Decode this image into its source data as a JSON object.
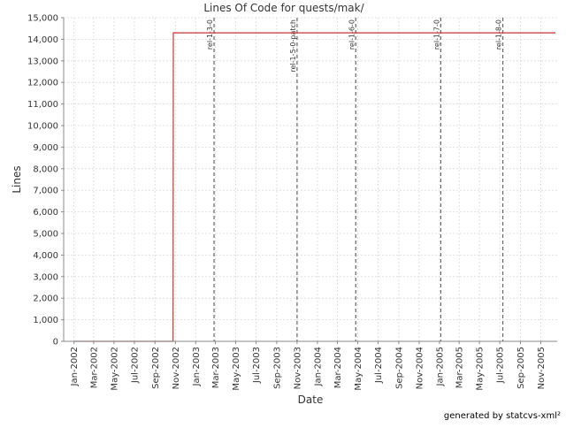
{
  "chart_data": {
    "type": "line",
    "title": "Lines Of Code for quests/mak/",
    "xlabel": "Date",
    "ylabel": "Lines",
    "ylim": [
      0,
      15000
    ],
    "xlim": [
      "2001-12-01",
      "2005-12-20"
    ],
    "grid": true,
    "yticks": [
      0,
      1000,
      2000,
      3000,
      4000,
      5000,
      6000,
      7000,
      8000,
      9000,
      10000,
      11000,
      12000,
      13000,
      14000,
      15000
    ],
    "yticklabels": [
      "0",
      "1,000",
      "2,000",
      "3,000",
      "4,000",
      "5,000",
      "6,000",
      "7,000",
      "8,000",
      "9,000",
      "10,000",
      "11,000",
      "12,000",
      "13,000",
      "14,000",
      "15,000"
    ],
    "xticks": [
      {
        "date": "2002-01-01",
        "label": "Jan-2002"
      },
      {
        "date": "2002-03-01",
        "label": "Mar-2002"
      },
      {
        "date": "2002-05-01",
        "label": "May-2002"
      },
      {
        "date": "2002-07-01",
        "label": "Jul-2002"
      },
      {
        "date": "2002-09-01",
        "label": "Sep-2002"
      },
      {
        "date": "2002-11-01",
        "label": "Nov-2002"
      },
      {
        "date": "2003-01-01",
        "label": "Jan-2003"
      },
      {
        "date": "2003-03-01",
        "label": "Mar-2003"
      },
      {
        "date": "2003-05-01",
        "label": "May-2003"
      },
      {
        "date": "2003-07-01",
        "label": "Jul-2003"
      },
      {
        "date": "2003-09-01",
        "label": "Sep-2003"
      },
      {
        "date": "2003-11-01",
        "label": "Nov-2003"
      },
      {
        "date": "2004-01-01",
        "label": "Jan-2004"
      },
      {
        "date": "2004-03-01",
        "label": "Mar-2004"
      },
      {
        "date": "2004-05-01",
        "label": "May-2004"
      },
      {
        "date": "2004-07-01",
        "label": "Jul-2004"
      },
      {
        "date": "2004-09-01",
        "label": "Sep-2004"
      },
      {
        "date": "2004-11-01",
        "label": "Nov-2004"
      },
      {
        "date": "2005-01-01",
        "label": "Jan-2005"
      },
      {
        "date": "2005-03-01",
        "label": "Mar-2005"
      },
      {
        "date": "2005-05-01",
        "label": "May-2005"
      },
      {
        "date": "2005-07-01",
        "label": "Jul-2005"
      },
      {
        "date": "2005-09-01",
        "label": "Sep-2005"
      },
      {
        "date": "2005-11-01",
        "label": "Nov-2005"
      }
    ],
    "series": [
      {
        "color": "#cc3333",
        "points": [
          {
            "x": "2002-01-01",
            "y": 0
          },
          {
            "x": "2002-10-25",
            "y": 0
          },
          {
            "x": "2002-10-26",
            "y": 14300
          },
          {
            "x": "2005-12-15",
            "y": 14300
          }
        ]
      }
    ],
    "markers": [
      {
        "date": "2003-02-25",
        "label": "rel-1-3-0"
      },
      {
        "date": "2003-11-01",
        "label": "rel-1-5-0-patch"
      },
      {
        "date": "2004-04-25",
        "label": "rel-1-6-0"
      },
      {
        "date": "2005-01-05",
        "label": "rel-1-7-0"
      },
      {
        "date": "2005-07-10",
        "label": "rel-1-8-0"
      }
    ]
  },
  "footer": {
    "text": "generated by statcvs-xml²"
  }
}
